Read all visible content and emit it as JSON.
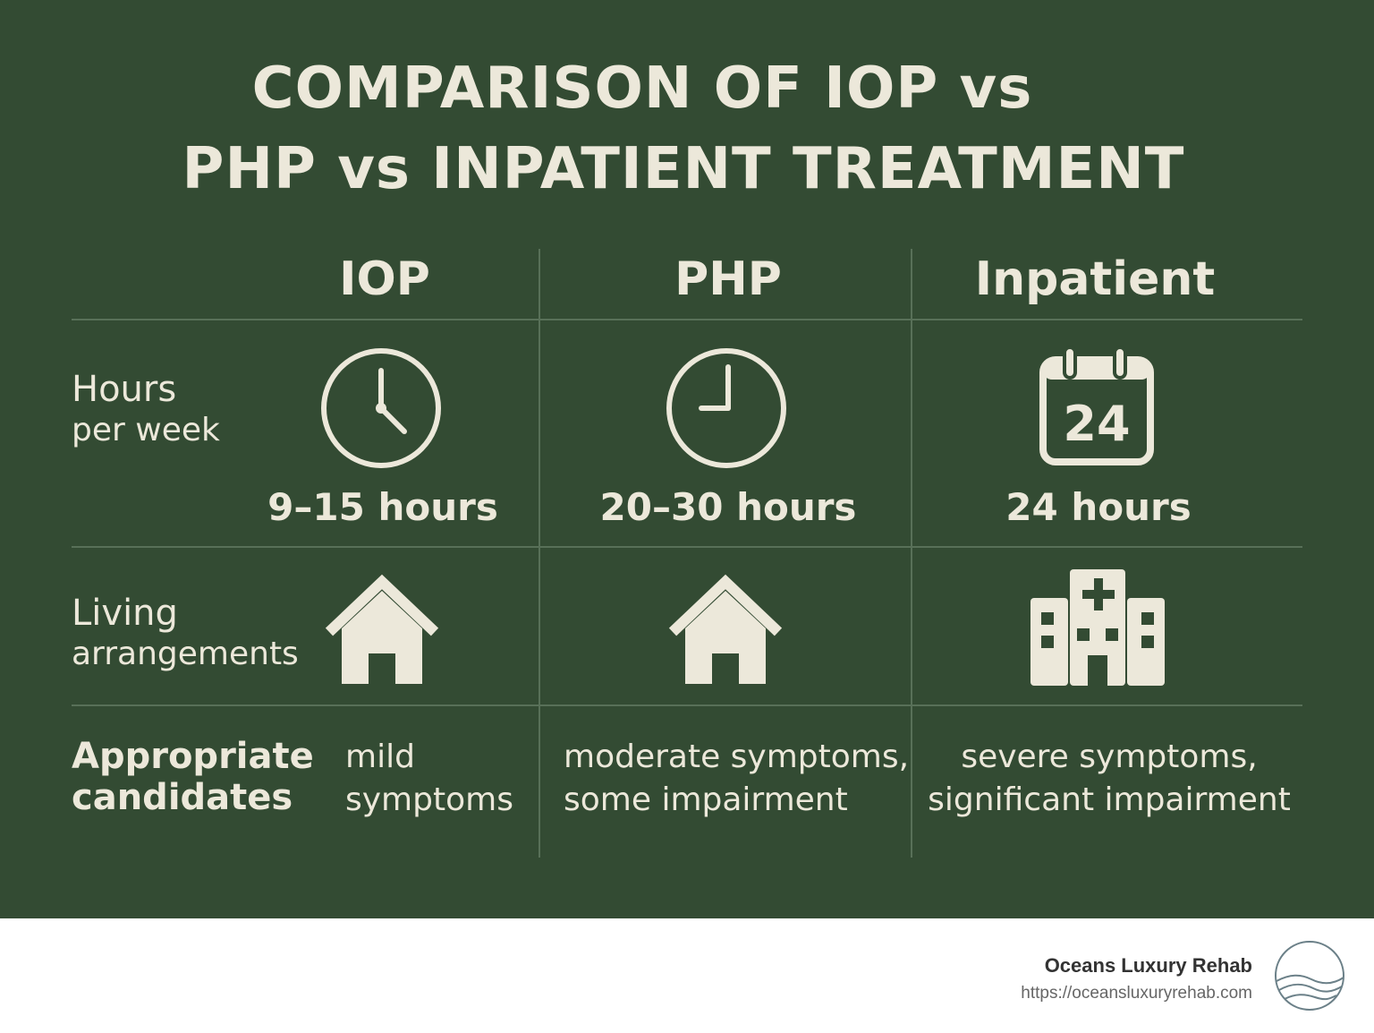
{
  "title": {
    "line1": "COMPARISON OF IOP vs",
    "line2": "PHP vs INPATIENT TREATMENT"
  },
  "columns": [
    "IOP",
    "PHP",
    "Inpatient"
  ],
  "rows": {
    "hours": {
      "label_line1": "Hours",
      "label_line2": "per week",
      "values": [
        "9–15 hours",
        "20–30 hours",
        "24 hours"
      ],
      "icons": [
        "clock-icon",
        "clock-icon",
        "calendar-icon"
      ],
      "calendar_number": "24"
    },
    "living": {
      "label_line1": "Living",
      "label_line2": "arrangements",
      "icons": [
        "house-icon",
        "house-icon",
        "hospital-icon"
      ]
    },
    "candidates": {
      "label_line1": "Appropriate",
      "label_line2": "candidates",
      "values": [
        [
          "mild",
          "symptoms"
        ],
        [
          "moderate symptoms,",
          "some impairment"
        ],
        [
          "severe symptoms,",
          "significant impairment"
        ]
      ]
    }
  },
  "colors": {
    "background": "#334b33",
    "foreground": "#ece8da",
    "rule": "#587058"
  },
  "footer": {
    "brand": "Oceans Luxury Rehab",
    "url": "https://oceansluxuryrehab.com",
    "logo_icon": "waves-logo-icon"
  }
}
